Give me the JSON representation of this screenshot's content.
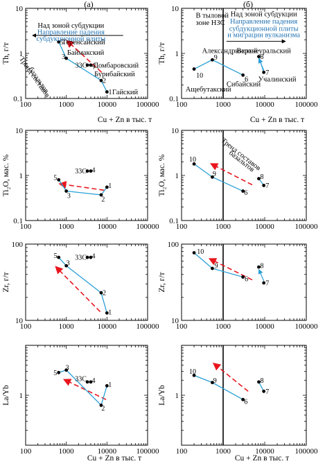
{
  "colors": {
    "line": "#2a9fd6",
    "arrow": "#e8161e",
    "text_blue": "#1f72b3",
    "ink": "#000000"
  },
  "column_headers": [
    "(а)",
    "(б)"
  ],
  "x_tick_labels": [
    "100",
    "1000",
    "10000",
    "100000"
  ],
  "x_axis_label": "Cu + Zn в тыс. т",
  "chart_data": [
    {
      "panel": "a1",
      "type": "scatter",
      "x_scale": "log",
      "y_scale": "log",
      "xlim": [
        100,
        100000
      ],
      "ylim": [
        0.1,
        10
      ],
      "ylabel": "Th, г/т",
      "y_tick_labels": [
        {
          "v": 10,
          "t": "10"
        },
        {
          "v": 1,
          "t": "1"
        },
        {
          "v": 0.1,
          "t": "0.1"
        }
      ],
      "points": [
        {
          "id": "5",
          "x": 650,
          "y": 1.8
        },
        {
          "id": "3",
          "x": 1000,
          "y": 0.78
        },
        {
          "id": "33C",
          "x": 3300,
          "y": 0.55
        },
        {
          "id": "4",
          "x": 4000,
          "y": 0.55
        },
        {
          "id": "2",
          "x": 7200,
          "y": 0.25
        },
        {
          "id": "1",
          "x": 10000,
          "y": 0.14
        }
      ],
      "series_lines": [
        [
          "5",
          "3",
          "2",
          "1"
        ]
      ],
      "point_labels": [
        {
          "x": 700,
          "y": 1.8,
          "t": "5",
          "a": "start"
        },
        {
          "x": 940,
          "y": 0.85,
          "t": "3",
          "a": "end"
        },
        {
          "x": 3200,
          "y": 0.55,
          "t": "33С",
          "a": "end"
        },
        {
          "x": 4250,
          "y": 0.55,
          "t": "4",
          "a": "start"
        },
        {
          "x": 7800,
          "y": 0.25,
          "t": "2",
          "a": "start"
        },
        {
          "x": 10900,
          "y": 0.14,
          "t": "1",
          "a": "start"
        }
      ],
      "text_labels": [
        {
          "x": 1300,
          "y": 4.2,
          "t": "Над зоной субдукции",
          "c": "black",
          "a": "middle"
        },
        {
          "x": 1300,
          "y": 3.0,
          "t": "Направление падения",
          "c": "blue",
          "a": "middle"
        },
        {
          "x": 1300,
          "y": 2.15,
          "t": "субдукционной плиты",
          "c": "blue",
          "a": "middle"
        },
        {
          "x": 780,
          "y": 1.8,
          "t": "Теренсайский",
          "c": "black",
          "a": "start"
        },
        {
          "x": 1050,
          "y": 1.05,
          "t": "Баймакский",
          "c": "black",
          "a": "start"
        },
        {
          "x": 4650,
          "y": 0.55,
          "t": "Домбаровский",
          "c": "black",
          "a": "start"
        },
        {
          "x": 4900,
          "y": 0.35,
          "t": "Бурибайский",
          "c": "black",
          "a": "start"
        },
        {
          "x": 13500,
          "y": 0.14,
          "t": "Гайский",
          "c": "black",
          "a": "start"
        }
      ],
      "text_labels_rotated": [
        {
          "x": 150,
          "y": 0.28,
          "t": "Тренд составов",
          "rot": 55
        },
        {
          "x": 190,
          "y": 0.24,
          "t": "базальтов",
          "rot": 55
        }
      ],
      "arrows": [
        {
          "x1": 7400,
          "y1": 0.38,
          "x2": 1050,
          "y2": 1.9,
          "kind": "dashed-red"
        },
        {
          "x1": 25000,
          "y1": 2.5,
          "x2": 150,
          "y2": 2.5,
          "kind": "solid-black"
        }
      ],
      "vertical_lines": []
    },
    {
      "panel": "b1",
      "type": "scatter",
      "x_scale": "log",
      "y_scale": "log",
      "xlim": [
        100,
        100000
      ],
      "ylim": [
        0.1,
        10
      ],
      "ylabel": "Th, г/т",
      "y_tick_labels": [
        {
          "v": 10,
          "t": "10"
        },
        {
          "v": 1,
          "t": "1"
        },
        {
          "v": 0.1,
          "t": "0.1"
        }
      ],
      "points": [
        {
          "id": "10",
          "x": 200,
          "y": 0.45
        },
        {
          "id": "9",
          "x": 550,
          "y": 0.72
        },
        {
          "id": "6",
          "x": 3000,
          "y": 0.33
        },
        {
          "id": "8",
          "x": 7200,
          "y": 0.85
        },
        {
          "id": "7",
          "x": 9500,
          "y": 0.38
        }
      ],
      "series_lines": [
        [
          "10",
          "9",
          "6"
        ],
        [
          "8",
          "7"
        ]
      ],
      "point_labels": [
        {
          "x": 225,
          "y": 0.33,
          "t": "10",
          "a": "start"
        },
        {
          "x": 600,
          "y": 0.83,
          "t": "9",
          "a": "start"
        },
        {
          "x": 3300,
          "y": 0.27,
          "t": "6",
          "a": "start"
        },
        {
          "x": 7800,
          "y": 0.85,
          "t": "8",
          "a": "start"
        },
        {
          "x": 10500,
          "y": 0.38,
          "t": "7",
          "a": "start"
        }
      ],
      "text_labels": [
        {
          "x": 220,
          "y": 7.0,
          "t": "В тыловой",
          "c": "black",
          "a": "start"
        },
        {
          "x": 220,
          "y": 4.8,
          "t": "зоне НЗС",
          "c": "black",
          "a": "start"
        },
        {
          "x": 9500,
          "y": 7.5,
          "t": "Над зоной субдукции",
          "c": "black",
          "a": "middle"
        },
        {
          "x": 9500,
          "y": 5.2,
          "t": "Направление падения",
          "c": "blue",
          "a": "middle"
        },
        {
          "x": 9500,
          "y": 3.6,
          "t": "субдукционной плиты",
          "c": "blue",
          "a": "middle"
        },
        {
          "x": 9500,
          "y": 2.6,
          "t": "и миграции вулканизма",
          "c": "blue",
          "a": "middle"
        },
        {
          "x": 1450,
          "y": 1.15,
          "t": "Александринский",
          "c": "black",
          "a": "middle"
        },
        {
          "x": 9500,
          "y": 1.15,
          "t": "Верхнеуральский",
          "c": "black",
          "a": "middle"
        },
        {
          "x": 440,
          "y": 0.16,
          "t": "Ащебутакский",
          "c": "black",
          "a": "middle"
        },
        {
          "x": 3100,
          "y": 0.21,
          "t": "Сибайский",
          "c": "black",
          "a": "middle"
        },
        {
          "x": 20000,
          "y": 0.27,
          "t": "Учалинский",
          "c": "black",
          "a": "middle"
        }
      ],
      "text_labels_rotated": [],
      "arrows": [
        {
          "x1": 1200,
          "y1": 1.85,
          "x2": 31000,
          "y2": 1.85,
          "kind": "solid-black"
        },
        {
          "x1": 9500,
          "y1": 0.42,
          "x2": 7300,
          "y2": 0.75,
          "kind": "blue"
        }
      ],
      "vertical_lines": [
        1000
      ]
    },
    {
      "panel": "a2",
      "type": "scatter",
      "x_scale": "log",
      "y_scale": "log",
      "xlim": [
        100,
        100000
      ],
      "ylim": [
        0.1,
        10
      ],
      "ylabel": "Ti₂O, мас. %",
      "y_tick_labels": [
        {
          "v": 10,
          "t": "10"
        },
        {
          "v": 1,
          "t": "1"
        },
        {
          "v": 0.1,
          "t": "0.1"
        }
      ],
      "points": [
        {
          "id": "5",
          "x": 650,
          "y": 0.8
        },
        {
          "id": "3",
          "x": 1000,
          "y": 0.45
        },
        {
          "id": "33C",
          "x": 3300,
          "y": 1.25
        },
        {
          "id": "4",
          "x": 4000,
          "y": 1.25
        },
        {
          "id": "2",
          "x": 7200,
          "y": 0.37
        },
        {
          "id": "1",
          "x": 10000,
          "y": 0.55
        }
      ],
      "series_lines": [
        [
          "5",
          "3",
          "2",
          "1"
        ]
      ],
      "point_labels": [
        {
          "x": 590,
          "y": 0.9,
          "t": "5",
          "a": "end"
        },
        {
          "x": 1050,
          "y": 0.36,
          "t": "3",
          "a": "start"
        },
        {
          "x": 3150,
          "y": 1.25,
          "t": "33С",
          "a": "end"
        },
        {
          "x": 4250,
          "y": 1.32,
          "t": "4",
          "a": "start"
        },
        {
          "x": 7300,
          "y": 0.3,
          "t": "2",
          "a": "start"
        },
        {
          "x": 10800,
          "y": 0.6,
          "t": "1",
          "a": "start"
        }
      ],
      "text_labels": [],
      "text_labels_rotated": [],
      "arrows": [
        {
          "x1": 8500,
          "y1": 0.47,
          "x2": 700,
          "y2": 0.65,
          "kind": "dashed-red"
        }
      ],
      "vertical_lines": []
    },
    {
      "panel": "b2",
      "type": "scatter",
      "x_scale": "log",
      "y_scale": "log",
      "xlim": [
        100,
        100000
      ],
      "ylim": [
        0.1,
        10
      ],
      "ylabel": "Ti₂O, мас. %",
      "y_tick_labels": [
        {
          "v": 10,
          "t": "10"
        },
        {
          "v": 1,
          "t": "1"
        },
        {
          "v": 0.1,
          "t": "0.1"
        }
      ],
      "points": [
        {
          "id": "10",
          "x": 200,
          "y": 1.8
        },
        {
          "id": "9",
          "x": 550,
          "y": 0.92
        },
        {
          "id": "6",
          "x": 3000,
          "y": 0.45
        },
        {
          "id": "8",
          "x": 7200,
          "y": 0.85
        },
        {
          "id": "7",
          "x": 9500,
          "y": 0.6
        }
      ],
      "series_lines": [
        [
          "10",
          "9",
          "6"
        ],
        [
          "8",
          "7"
        ]
      ],
      "point_labels": [
        {
          "x": 185,
          "y": 2.3,
          "t": "10",
          "a": "middle"
        },
        {
          "x": 560,
          "y": 1.1,
          "t": "9",
          "a": "start"
        },
        {
          "x": 3200,
          "y": 0.42,
          "t": "6",
          "a": "start"
        },
        {
          "x": 7800,
          "y": 0.95,
          "t": "8",
          "a": "start"
        },
        {
          "x": 10500,
          "y": 0.6,
          "t": "7",
          "a": "start"
        }
      ],
      "text_labels": [],
      "text_labels_rotated": [
        {
          "x": 2500,
          "y": 2.7,
          "t": "Тренд составов",
          "rot": 38
        },
        {
          "x": 2600,
          "y": 1.9,
          "t": "базальтов",
          "rot": 38
        }
      ],
      "arrows": [
        {
          "x1": 5000,
          "y1": 0.62,
          "x2": 520,
          "y2": 1.8,
          "kind": "dashed-red"
        }
      ],
      "vertical_lines": [
        1000
      ]
    },
    {
      "panel": "a3",
      "type": "scatter",
      "x_scale": "log",
      "y_scale": "log",
      "xlim": [
        100,
        100000
      ],
      "ylim": [
        10,
        100
      ],
      "ylabel": "Zr, г/т",
      "y_tick_labels": [
        {
          "v": 100,
          "t": "100"
        },
        {
          "v": 10,
          "t": "10"
        }
      ],
      "points": [
        {
          "id": "5",
          "x": 650,
          "y": 67
        },
        {
          "id": "3",
          "x": 1000,
          "y": 52
        },
        {
          "id": "33C",
          "x": 3300,
          "y": 67
        },
        {
          "id": "4",
          "x": 4000,
          "y": 67
        },
        {
          "id": "2",
          "x": 7200,
          "y": 23
        },
        {
          "id": "1",
          "x": 10000,
          "y": 12.5
        }
      ],
      "series_lines": [
        [
          "5",
          "3",
          "2",
          "1"
        ]
      ],
      "point_labels": [
        {
          "x": 600,
          "y": 71,
          "t": "5",
          "a": "end"
        },
        {
          "x": 1000,
          "y": 57,
          "t": "3",
          "a": "start"
        },
        {
          "x": 3150,
          "y": 67,
          "t": "33С",
          "a": "end"
        },
        {
          "x": 4250,
          "y": 70,
          "t": "4",
          "a": "start"
        },
        {
          "x": 7800,
          "y": 23,
          "t": "2",
          "a": "start"
        },
        {
          "x": 10800,
          "y": 12.8,
          "t": "1",
          "a": "start"
        }
      ],
      "text_labels": [],
      "text_labels_rotated": [],
      "arrows": [
        {
          "x1": 6800,
          "y1": 13,
          "x2": 560,
          "y2": 50,
          "kind": "dashed-red"
        }
      ],
      "vertical_lines": []
    },
    {
      "panel": "b3",
      "type": "scatter",
      "x_scale": "log",
      "y_scale": "log",
      "xlim": [
        100,
        100000
      ],
      "ylim": [
        10,
        100
      ],
      "ylabel": "Zr, г/т",
      "y_tick_labels": [
        {
          "v": 100,
          "t": "100"
        },
        {
          "v": 10,
          "t": "10"
        }
      ],
      "points": [
        {
          "id": "10",
          "x": 200,
          "y": 77
        },
        {
          "id": "9",
          "x": 550,
          "y": 48
        },
        {
          "id": "6",
          "x": 3000,
          "y": 37
        },
        {
          "id": "8",
          "x": 7200,
          "y": 50
        },
        {
          "id": "7",
          "x": 9500,
          "y": 31
        }
      ],
      "series_lines": [
        [
          "10",
          "9",
          "6"
        ]
      ],
      "point_labels": [
        {
          "x": 235,
          "y": 80,
          "t": "10",
          "a": "start"
        },
        {
          "x": 620,
          "y": 52,
          "t": "9",
          "a": "start"
        },
        {
          "x": 3300,
          "y": 35,
          "t": "6",
          "a": "start"
        },
        {
          "x": 7800,
          "y": 52,
          "t": "8",
          "a": "start"
        },
        {
          "x": 10500,
          "y": 31,
          "t": "7",
          "a": "start"
        }
      ],
      "text_labels": [],
      "text_labels_rotated": [],
      "arrows": [
        {
          "x1": 5000,
          "y1": 34,
          "x2": 480,
          "y2": 64,
          "kind": "dashed-red"
        },
        {
          "x1": 9500,
          "y1": 33,
          "x2": 7300,
          "y2": 46,
          "kind": "blue"
        }
      ],
      "vertical_lines": [
        1000
      ]
    },
    {
      "panel": "a4",
      "type": "scatter",
      "x_scale": "log",
      "y_scale": "log",
      "xlim": [
        100,
        100000
      ],
      "ylim": [
        0.1,
        10
      ],
      "ylabel": "La/Yb",
      "y_tick_labels": [
        {
          "v": 1,
          "t": "1"
        }
      ],
      "points": [
        {
          "id": "5",
          "x": 650,
          "y": 2.85
        },
        {
          "id": "3",
          "x": 1000,
          "y": 3.2
        },
        {
          "id": "33C",
          "x": 3300,
          "y": 1.85
        },
        {
          "id": "4",
          "x": 4000,
          "y": 1.85
        },
        {
          "id": "2",
          "x": 7200,
          "y": 0.63
        },
        {
          "id": "1",
          "x": 10000,
          "y": 1.55
        }
      ],
      "series_lines": [
        [
          "5",
          "3",
          "2",
          "1"
        ]
      ],
      "point_labels": [
        {
          "x": 590,
          "y": 2.85,
          "t": "5",
          "a": "end"
        },
        {
          "x": 960,
          "y": 3.6,
          "t": "3",
          "a": "start"
        },
        {
          "x": 3150,
          "y": 2.15,
          "t": "33С",
          "a": "end"
        },
        {
          "x": 4250,
          "y": 2.0,
          "t": "4",
          "a": "start"
        },
        {
          "x": 7300,
          "y": 0.55,
          "t": "2",
          "a": "start"
        },
        {
          "x": 10800,
          "y": 1.65,
          "t": "1",
          "a": "start"
        }
      ],
      "text_labels": [],
      "text_labels_rotated": [],
      "arrows": [
        {
          "x1": 9500,
          "y1": 0.82,
          "x2": 900,
          "y2": 2.05,
          "kind": "dashed-red"
        }
      ],
      "vertical_lines": []
    },
    {
      "panel": "b4",
      "type": "scatter",
      "x_scale": "log",
      "y_scale": "log",
      "xlim": [
        100,
        100000
      ],
      "ylim": [
        0.1,
        10
      ],
      "ylabel": "La/Yb",
      "y_tick_labels": [
        {
          "v": 1,
          "t": "1"
        }
      ],
      "points": [
        {
          "id": "10",
          "x": 200,
          "y": 2.5
        },
        {
          "id": "9",
          "x": 550,
          "y": 1.8
        },
        {
          "id": "6",
          "x": 3000,
          "y": 0.82
        },
        {
          "id": "8",
          "x": 7200,
          "y": 1.85
        },
        {
          "id": "7",
          "x": 9500,
          "y": 1.2
        }
      ],
      "series_lines": [
        [
          "10",
          "9",
          "6"
        ],
        [
          "8",
          "7"
        ]
      ],
      "point_labels": [
        {
          "x": 185,
          "y": 3.0,
          "t": "10",
          "a": "middle"
        },
        {
          "x": 580,
          "y": 2.0,
          "t": "9",
          "a": "start"
        },
        {
          "x": 3200,
          "y": 0.75,
          "t": "6",
          "a": "start"
        },
        {
          "x": 7800,
          "y": 2.0,
          "t": "8",
          "a": "start"
        },
        {
          "x": 10500,
          "y": 1.2,
          "t": "7",
          "a": "start"
        }
      ],
      "text_labels": [],
      "text_labels_rotated": [],
      "arrows": [
        {
          "x1": 4000,
          "y1": 1.2,
          "x2": 600,
          "y2": 4.3,
          "kind": "dashed-red"
        }
      ],
      "vertical_lines": [
        1000
      ]
    }
  ]
}
